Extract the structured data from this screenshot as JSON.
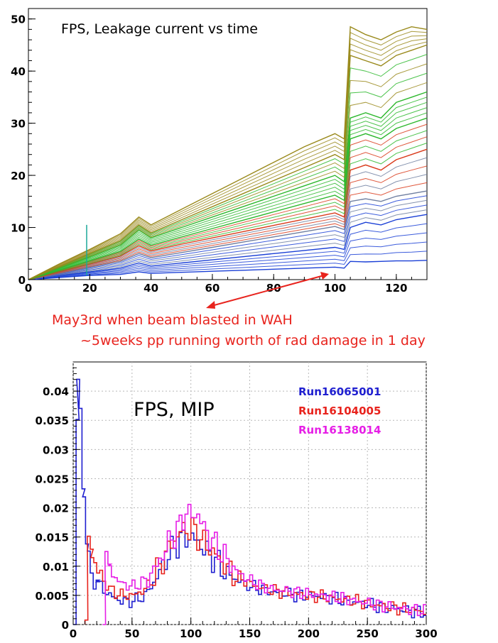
{
  "chart_data": [
    {
      "type": "line",
      "title": "FPS, Leakage current vs time",
      "xlim": [
        0,
        130
      ],
      "ylim": [
        0,
        52
      ],
      "xticks": [
        0,
        20,
        40,
        60,
        80,
        100,
        120
      ],
      "yticks": [
        0,
        10,
        20,
        30,
        40,
        50
      ],
      "grid": false,
      "series_count_note": "",
      "series": [
        {
          "color": "#1a3fd6",
          "x": [
            0,
            10,
            20,
            30,
            36,
            40,
            50,
            60,
            70,
            80,
            90,
            100,
            103,
            105,
            110,
            115,
            120,
            125,
            130
          ],
          "y": [
            0,
            0.4,
            0.8,
            1.0,
            1.5,
            1.2,
            1.4,
            1.6,
            1.8,
            2.0,
            2.2,
            2.4,
            2.2,
            3.5,
            3.4,
            3.5,
            3.6,
            3.6,
            3.7
          ]
        },
        {
          "color": "#1a3fd6",
          "x": [
            0,
            10,
            20,
            30,
            36,
            40,
            50,
            60,
            70,
            80,
            90,
            100,
            103,
            105,
            110,
            115,
            120,
            125,
            130
          ],
          "y": [
            0,
            0.8,
            1.5,
            2.2,
            3.2,
            2.6,
            3.2,
            3.8,
            4.4,
            5.0,
            5.6,
            6.2,
            5.8,
            10,
            11,
            10.5,
            11.5,
            12,
            12.5
          ]
        },
        {
          "color": "#6f7fa0",
          "x": [
            0,
            10,
            20,
            30,
            36,
            40,
            50,
            60,
            70,
            80,
            90,
            100,
            103,
            105,
            110,
            115,
            120,
            125,
            130
          ],
          "y": [
            0,
            1.2,
            2.4,
            3.5,
            5.0,
            4.2,
            5.2,
            6.2,
            7.2,
            8.2,
            9.2,
            10.2,
            9.6,
            15,
            15.5,
            15,
            16,
            16.5,
            17
          ]
        },
        {
          "color": "#d93a1a",
          "x": [
            0,
            10,
            20,
            30,
            36,
            40,
            50,
            60,
            70,
            80,
            90,
            100,
            103,
            105,
            110,
            115,
            120,
            125,
            130
          ],
          "y": [
            0,
            1.5,
            3.0,
            4.5,
            6.5,
            5.5,
            6.8,
            8.0,
            9.2,
            10.4,
            11.6,
            12.8,
            12.0,
            21,
            22,
            21,
            23,
            24,
            25
          ]
        },
        {
          "color": "#2db82d",
          "x": [
            0,
            10,
            20,
            30,
            36,
            40,
            50,
            60,
            70,
            80,
            90,
            100,
            103,
            105,
            110,
            115,
            120,
            125,
            130
          ],
          "y": [
            0,
            1.8,
            3.6,
            5.4,
            7.8,
            6.6,
            8.2,
            9.8,
            11.4,
            13.0,
            14.6,
            16.2,
            15.2,
            27,
            28,
            27,
            29,
            30,
            31
          ]
        },
        {
          "color": "#2db82d",
          "x": [
            0,
            10,
            20,
            30,
            36,
            40,
            50,
            60,
            70,
            80,
            90,
            100,
            103,
            105,
            110,
            115,
            120,
            125,
            130
          ],
          "y": [
            0,
            2.2,
            4.4,
            6.6,
            9.5,
            8.0,
            10.0,
            12.0,
            14.0,
            16.0,
            18.0,
            20.0,
            18.8,
            31,
            32,
            31,
            34,
            35,
            36
          ]
        },
        {
          "color": "#9a8a1c",
          "x": [
            0,
            10,
            20,
            30,
            36,
            40,
            50,
            60,
            70,
            80,
            90,
            100,
            103,
            105,
            110,
            115,
            120,
            125,
            130
          ],
          "y": [
            0,
            2.5,
            5.0,
            7.5,
            10.5,
            9.0,
            11.5,
            14.0,
            16.5,
            19.0,
            21.5,
            24.0,
            23.0,
            43,
            42,
            41,
            43,
            44,
            45
          ]
        },
        {
          "color": "#9a8a1c",
          "x": [
            0,
            10,
            20,
            30,
            36,
            40,
            50,
            60,
            70,
            80,
            90,
            100,
            103,
            105,
            110,
            115,
            120,
            125,
            130
          ],
          "y": [
            0,
            3.0,
            5.8,
            8.8,
            12.0,
            10.5,
            13.5,
            16.5,
            19.5,
            22.5,
            25.5,
            28.0,
            27.0,
            48.5,
            47,
            46,
            47.5,
            48.5,
            48
          ]
        }
      ],
      "spike": {
        "color": "#1aa89a",
        "x": 19,
        "y": 10.5
      }
    },
    {
      "type": "line",
      "title": "FPS, MIP",
      "xlim": [
        0,
        300
      ],
      "ylim": [
        0,
        0.045
      ],
      "xticks": [
        0,
        50,
        100,
        150,
        200,
        250,
        300
      ],
      "yticks": [
        0,
        0.005,
        0.01,
        0.015,
        0.02,
        0.025,
        0.03,
        0.035,
        0.04
      ],
      "ytick_labels": [
        "0",
        "0.005",
        "0.01",
        "0.015",
        "0.02",
        "0.025",
        "0.03",
        "0.035",
        "0.04"
      ],
      "grid": true,
      "series": [
        {
          "name": "Run16065001",
          "color": "#1f1fd0",
          "x": [
            0,
            3,
            5,
            8,
            12,
            20,
            30,
            40,
            50,
            60,
            70,
            80,
            90,
            100,
            110,
            120,
            130,
            140,
            150,
            160,
            170,
            180,
            190,
            200,
            210,
            220,
            230,
            240,
            250,
            260,
            270,
            280,
            290,
            300
          ],
          "y": [
            0,
            0.042,
            0.036,
            0.022,
            0.01,
            0.007,
            0.005,
            0.004,
            0.004,
            0.005,
            0.008,
            0.012,
            0.0145,
            0.015,
            0.013,
            0.011,
            0.0085,
            0.0075,
            0.0065,
            0.006,
            0.0055,
            0.0053,
            0.005,
            0.005,
            0.0048,
            0.0045,
            0.004,
            0.0038,
            0.0035,
            0.003,
            0.0028,
            0.0025,
            0.0022,
            0.002
          ]
        },
        {
          "name": "Run16104005",
          "color": "#e8231d",
          "x": [
            10,
            12,
            15,
            20,
            30,
            40,
            50,
            60,
            70,
            80,
            90,
            100,
            110,
            120,
            130,
            140,
            150,
            160,
            170,
            180,
            190,
            200,
            210,
            220,
            230,
            240,
            250,
            260,
            270,
            280,
            290,
            300
          ],
          "y": [
            0,
            0.015,
            0.012,
            0.009,
            0.006,
            0.005,
            0.005,
            0.006,
            0.009,
            0.013,
            0.016,
            0.0165,
            0.014,
            0.012,
            0.0095,
            0.008,
            0.007,
            0.0062,
            0.0058,
            0.0055,
            0.0052,
            0.005,
            0.0048,
            0.0045,
            0.0042,
            0.004,
            0.0036,
            0.0032,
            0.003,
            0.0027,
            0.0024,
            0.0022
          ]
        },
        {
          "name": "Run16138014",
          "color": "#e61ee6",
          "x": [
            25,
            27,
            30,
            35,
            40,
            50,
            60,
            70,
            80,
            90,
            95,
            100,
            105,
            110,
            120,
            130,
            140,
            150,
            160,
            170,
            180,
            190,
            200,
            210,
            220,
            230,
            240,
            250,
            260,
            270,
            280,
            290,
            300
          ],
          "y": [
            0,
            0.012,
            0.01,
            0.008,
            0.007,
            0.0065,
            0.0075,
            0.01,
            0.014,
            0.017,
            0.0195,
            0.0185,
            0.019,
            0.0165,
            0.0135,
            0.011,
            0.0085,
            0.0075,
            0.0065,
            0.006,
            0.0058,
            0.0055,
            0.0052,
            0.005,
            0.0047,
            0.0044,
            0.004,
            0.0037,
            0.0033,
            0.003,
            0.0027,
            0.0025,
            0.0023
          ]
        }
      ]
    }
  ],
  "annotation": {
    "line1": "May3rd when beam blasted in WAH",
    "line2": "~5weeks pp running worth of rad damage in 1 day",
    "color": "#e8231d"
  }
}
